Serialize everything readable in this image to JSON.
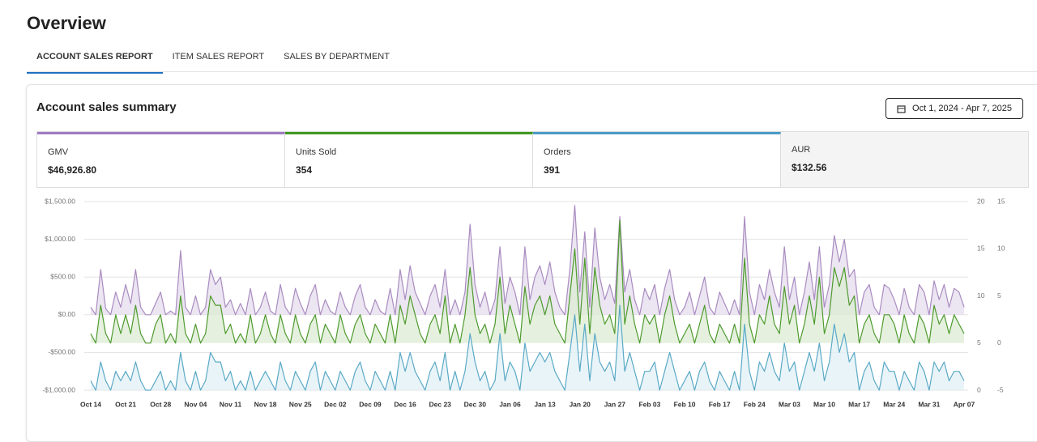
{
  "page": {
    "title": "Overview",
    "tabs": [
      "ACCOUNT SALES REPORT",
      "ITEM SALES REPORT",
      "SALES BY DEPARTMENT"
    ],
    "panel_title": "Account sales summary",
    "date_range": "Oct 1, 2024 - Apr 7, 2025",
    "cards": [
      {
        "label": "GMV",
        "value": "$46,926.80"
      },
      {
        "label": "Units Sold",
        "value": "354"
      },
      {
        "label": "Orders",
        "value": "391"
      },
      {
        "label": "AUR",
        "value": "$132.56"
      }
    ]
  },
  "chart_data": {
    "type": "line",
    "categories": [
      "Oct 14",
      null,
      null,
      null,
      null,
      null,
      null,
      "Oct 21",
      null,
      null,
      null,
      null,
      null,
      null,
      "Oct 28",
      null,
      null,
      null,
      null,
      null,
      null,
      "Nov 04",
      null,
      null,
      null,
      null,
      null,
      null,
      "Nov 11",
      null,
      null,
      null,
      null,
      null,
      null,
      "Nov 18",
      null,
      null,
      null,
      null,
      null,
      null,
      "Nov 25",
      null,
      null,
      null,
      null,
      null,
      null,
      "Dec 02",
      null,
      null,
      null,
      null,
      null,
      null,
      "Dec 09",
      null,
      null,
      null,
      null,
      null,
      null,
      "Dec 16",
      null,
      null,
      null,
      null,
      null,
      null,
      "Dec 23",
      null,
      null,
      null,
      null,
      null,
      null,
      "Dec 30",
      null,
      null,
      null,
      null,
      null,
      null,
      "Jan 06",
      null,
      null,
      null,
      null,
      null,
      null,
      "Jan 13",
      null,
      null,
      null,
      null,
      null,
      null,
      "Jan 20",
      null,
      null,
      null,
      null,
      null,
      null,
      "Jan 27",
      null,
      null,
      null,
      null,
      null,
      null,
      "Feb 03",
      null,
      null,
      null,
      null,
      null,
      null,
      "Feb 10",
      null,
      null,
      null,
      null,
      null,
      null,
      "Feb 17",
      null,
      null,
      null,
      null,
      null,
      null,
      "Feb 24",
      null,
      null,
      null,
      null,
      null,
      null,
      "Mar 03",
      null,
      null,
      null,
      null,
      null,
      null,
      "Mar 10",
      null,
      null,
      null,
      null,
      null,
      null,
      "Mar 17",
      null,
      null,
      null,
      null,
      null,
      null,
      "Mar 24",
      null,
      null,
      null,
      null,
      null,
      null,
      "Mar 31",
      null,
      null,
      null,
      null,
      null,
      null,
      "Apr 07"
    ],
    "ylim": [
      -1000,
      1500
    ],
    "yticks": [
      {
        "value": -1000,
        "label": "-$1,000.00"
      },
      {
        "value": -500,
        "label": "-$500.00"
      },
      {
        "value": 0,
        "label": "$0.00"
      },
      {
        "value": 500,
        "label": "$500.00"
      },
      {
        "value": 1000,
        "label": "$1,000.00"
      },
      {
        "value": 1500,
        "label": "$1,500.00"
      }
    ],
    "y2lim": [
      0,
      20
    ],
    "y2ticks": [
      0,
      5,
      10,
      15,
      20
    ],
    "y3lim": [
      -5,
      15
    ],
    "y3ticks": [
      -5,
      0,
      5,
      10,
      15
    ],
    "grid": true,
    "series": [
      {
        "color": "#a98cc0",
        "fill": "#e6dcee",
        "axis": "y",
        "values": [
          100,
          0,
          600,
          80,
          0,
          300,
          100,
          400,
          150,
          600,
          100,
          0,
          0,
          150,
          300,
          0,
          50,
          0,
          850,
          100,
          0,
          250,
          0,
          100,
          600,
          400,
          500,
          100,
          200,
          0,
          150,
          0,
          350,
          0,
          100,
          300,
          50,
          0,
          400,
          100,
          0,
          350,
          150,
          0,
          250,
          400,
          0,
          200,
          50,
          0,
          300,
          100,
          0,
          250,
          400,
          100,
          0,
          200,
          50,
          0,
          350,
          0,
          600,
          200,
          650,
          300,
          150,
          0,
          250,
          400,
          100,
          600,
          0,
          200,
          0,
          300,
          1200,
          400,
          100,
          300,
          0,
          200,
          900,
          150,
          500,
          300,
          0,
          900,
          200,
          500,
          650,
          400,
          700,
          300,
          100,
          0,
          600,
          1450,
          300,
          1100,
          100,
          1150,
          500,
          200,
          400,
          150,
          1300,
          300,
          600,
          200,
          0,
          350,
          200,
          400,
          0,
          350,
          600,
          200,
          0,
          100,
          300,
          0,
          250,
          500,
          100,
          0,
          300,
          150,
          0,
          200,
          0,
          1300,
          300,
          0,
          400,
          200,
          600,
          300,
          100,
          900,
          200,
          500,
          0,
          300,
          700,
          200,
          900,
          100,
          400,
          1050,
          700,
          1000,
          500,
          600,
          0,
          300,
          400,
          100,
          0,
          400,
          350,
          200,
          0,
          350,
          100,
          0,
          400,
          300,
          0,
          450,
          200,
          400,
          100,
          350,
          300,
          100
        ]
      },
      {
        "color": "#4e9a2e",
        "fill": "#dcecd3",
        "axis": "y3",
        "values": [
          1,
          0,
          4,
          1,
          0,
          3,
          1,
          3,
          1,
          4,
          1,
          0,
          0,
          2,
          3,
          0,
          1,
          0,
          5,
          1,
          0,
          2,
          0,
          1,
          5,
          4,
          4,
          1,
          2,
          0,
          1,
          0,
          3,
          0,
          1,
          3,
          1,
          0,
          3,
          1,
          0,
          3,
          1,
          0,
          2,
          3,
          0,
          2,
          1,
          0,
          3,
          1,
          0,
          2,
          3,
          1,
          0,
          2,
          1,
          0,
          3,
          0,
          4,
          2,
          5,
          3,
          1,
          0,
          2,
          3,
          1,
          5,
          0,
          2,
          0,
          3,
          8,
          3,
          1,
          2,
          0,
          2,
          7,
          1,
          4,
          2,
          0,
          6,
          2,
          4,
          5,
          3,
          5,
          2,
          1,
          0,
          5,
          10,
          2,
          9,
          1,
          8,
          4,
          2,
          3,
          1,
          13,
          2,
          5,
          2,
          0,
          3,
          2,
          3,
          0,
          3,
          5,
          2,
          0,
          1,
          2,
          0,
          2,
          4,
          1,
          0,
          2,
          1,
          0,
          2,
          0,
          9,
          2,
          0,
          3,
          2,
          5,
          2,
          1,
          6,
          2,
          4,
          0,
          2,
          5,
          2,
          7,
          1,
          3,
          8,
          6,
          8,
          4,
          5,
          0,
          2,
          3,
          1,
          0,
          3,
          3,
          2,
          0,
          3,
          1,
          0,
          3,
          2,
          0,
          4,
          2,
          3,
          1,
          3,
          2,
          1
        ]
      },
      {
        "color": "#5aa9c6",
        "fill": "#e2f0f6",
        "axis": "y2",
        "values": [
          1,
          0,
          3,
          1,
          0,
          2,
          1,
          2,
          1,
          3,
          1,
          0,
          0,
          1,
          2,
          0,
          1,
          0,
          4,
          1,
          0,
          2,
          0,
          1,
          4,
          3,
          3,
          1,
          2,
          0,
          1,
          0,
          2,
          0,
          1,
          2,
          1,
          0,
          3,
          1,
          0,
          2,
          1,
          0,
          2,
          3,
          0,
          2,
          1,
          0,
          2,
          1,
          0,
          2,
          3,
          1,
          0,
          2,
          1,
          0,
          2,
          0,
          4,
          2,
          4,
          2,
          1,
          0,
          2,
          3,
          1,
          4,
          0,
          2,
          0,
          2,
          6,
          3,
          1,
          2,
          0,
          1,
          6,
          1,
          3,
          2,
          0,
          5,
          2,
          3,
          4,
          3,
          4,
          2,
          1,
          0,
          4,
          8,
          2,
          7,
          1,
          6,
          3,
          2,
          3,
          1,
          9,
          2,
          4,
          2,
          0,
          2,
          2,
          3,
          0,
          2,
          4,
          2,
          0,
          1,
          2,
          0,
          2,
          3,
          1,
          0,
          2,
          1,
          0,
          2,
          0,
          7,
          2,
          0,
          3,
          2,
          4,
          2,
          1,
          5,
          2,
          3,
          0,
          2,
          4,
          2,
          5,
          1,
          3,
          7,
          4,
          6,
          3,
          4,
          0,
          2,
          3,
          1,
          0,
          3,
          2,
          2,
          0,
          2,
          1,
          0,
          3,
          2,
          0,
          3,
          2,
          3,
          1,
          2,
          2,
          1
        ]
      }
    ]
  }
}
